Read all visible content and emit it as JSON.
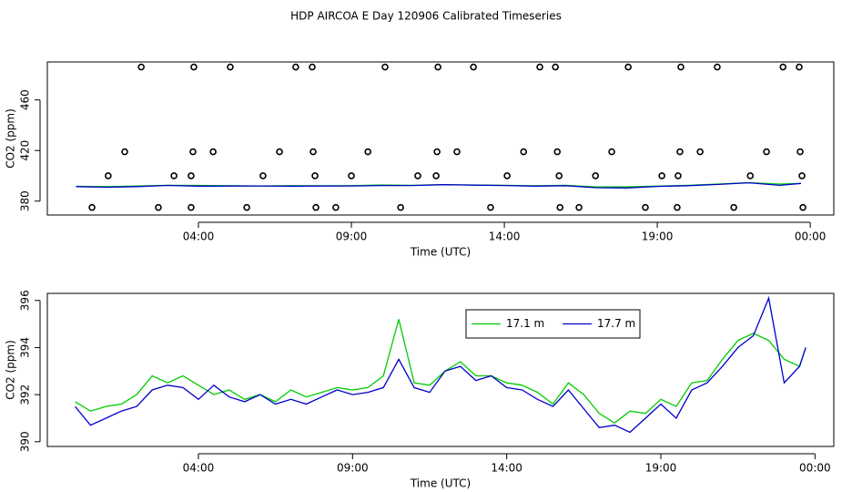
{
  "chart_data": [
    {
      "type": "line",
      "title": "HDP AIRCOA E  Day 120906  Calibrated Timeseries",
      "xlabel": "Time (UTC)",
      "ylabel": "CO2 (ppm)",
      "xlim": [
        -0.94,
        24.77
      ],
      "xticks": [
        {
          "value": 4,
          "label": "04:00"
        },
        {
          "value": 9,
          "label": "09:00"
        },
        {
          "value": 14,
          "label": "14:00"
        },
        {
          "value": 19,
          "label": "19:00"
        },
        {
          "value": 24,
          "label": "00:00"
        }
      ],
      "ylim": [
        369,
        490
      ],
      "yticks": [
        380,
        420,
        460
      ],
      "series": [
        {
          "type": "line",
          "color": "#00cc00",
          "x": [
            0,
            1,
            2,
            3,
            4,
            5,
            6,
            7,
            8,
            9,
            10,
            11,
            12,
            13,
            14,
            15,
            16,
            17,
            18,
            19,
            20,
            21,
            22,
            23,
            23.7
          ],
          "values": [
            391.7,
            391.5,
            392.0,
            392.5,
            392.4,
            392.2,
            392.0,
            392.2,
            392.1,
            392.2,
            392.8,
            392.5,
            393.0,
            392.8,
            392.5,
            392.1,
            392.5,
            391.2,
            391.3,
            391.8,
            392.5,
            393.5,
            394.6,
            393.5,
            394.0
          ]
        },
        {
          "type": "line",
          "color": "#0000cc",
          "x": [
            0,
            1,
            2,
            3,
            4,
            5,
            6,
            7,
            8,
            9,
            10,
            11,
            12,
            13,
            14,
            15,
            16,
            17,
            18,
            19,
            20,
            21,
            22,
            23,
            23.7
          ],
          "values": [
            391.5,
            391.0,
            391.5,
            392.4,
            391.8,
            391.9,
            392.0,
            391.8,
            391.9,
            392.0,
            392.3,
            392.3,
            393.0,
            392.6,
            392.3,
            391.8,
            392.2,
            390.6,
            390.4,
            391.6,
            392.2,
            393.2,
            394.5,
            392.5,
            394.0
          ]
        },
        {
          "type": "scatter",
          "color": "#000000",
          "x": [
            2.13,
            3.85,
            5.04,
            7.18,
            7.72,
            10.1,
            11.83,
            12.99,
            15.16,
            15.67,
            18.05,
            19.77,
            20.96,
            23.11,
            23.64,
            1.59,
            3.82,
            4.48,
            6.65,
            7.75,
            9.54,
            11.8,
            12.45,
            14.63,
            15.73,
            17.51,
            19.74,
            20.4,
            22.57,
            23.67,
            1.05,
            3.2,
            3.76,
            6.11,
            7.81,
            9.0,
            11.17,
            11.77,
            14.09,
            15.79,
            16.98,
            19.15,
            19.68,
            22.04,
            23.73,
            0.52,
            2.69,
            3.76,
            5.58,
            7.84,
            8.49,
            10.61,
            13.55,
            15.82,
            16.44,
            18.61,
            19.65,
            21.5,
            23.76
          ],
          "values": [
            486,
            486,
            486,
            486,
            486,
            486,
            486,
            486,
            486,
            486,
            486,
            486,
            486,
            486,
            486,
            419,
            419,
            419,
            419,
            419,
            419,
            419,
            419,
            419,
            419,
            419,
            419,
            419,
            419,
            419,
            400,
            400,
            400,
            400,
            400,
            400,
            400,
            400,
            400,
            400,
            400,
            400,
            400,
            400,
            400,
            375,
            375,
            375,
            375,
            375,
            375,
            375,
            375,
            375,
            375,
            375,
            375,
            375,
            375
          ]
        }
      ]
    },
    {
      "type": "line",
      "xlabel": "Time (UTC)",
      "ylabel": "CO2 (ppm)",
      "xlim": [
        -0.9,
        24.61
      ],
      "xticks": [
        {
          "value": 4,
          "label": "04:00"
        },
        {
          "value": 9,
          "label": "09:00"
        },
        {
          "value": 14,
          "label": "14:00"
        },
        {
          "value": 19,
          "label": "19:00"
        },
        {
          "value": 24,
          "label": "00:00"
        }
      ],
      "ylim": [
        389.8,
        396.3
      ],
      "yticks": [
        390,
        392,
        394,
        396
      ],
      "legend": "top",
      "series": [
        {
          "type": "line",
          "name": "17.1 m",
          "color": "#00cc00",
          "x": [
            0,
            0.5,
            1,
            1.5,
            2,
            2.5,
            3,
            3.5,
            4,
            4.5,
            5,
            5.5,
            6,
            6.5,
            7,
            7.5,
            8,
            8.5,
            9,
            9.5,
            10,
            10.5,
            11,
            11.5,
            12,
            12.5,
            13,
            13.5,
            14,
            14.5,
            15,
            15.5,
            16,
            16.5,
            17,
            17.5,
            18,
            18.5,
            19,
            19.5,
            20,
            20.5,
            21,
            21.5,
            22,
            22.5,
            23,
            23.5,
            23.7
          ],
          "values": [
            391.7,
            391.3,
            391.5,
            391.6,
            392.0,
            392.8,
            392.5,
            392.8,
            392.4,
            392.0,
            392.2,
            391.8,
            392.0,
            391.7,
            392.2,
            391.9,
            392.1,
            392.3,
            392.2,
            392.3,
            392.8,
            395.2,
            392.5,
            392.4,
            393.0,
            393.4,
            392.8,
            392.8,
            392.5,
            392.4,
            392.1,
            391.6,
            392.5,
            392.0,
            391.2,
            390.8,
            391.3,
            391.2,
            391.8,
            391.5,
            392.5,
            392.6,
            393.5,
            394.3,
            394.6,
            394.3,
            393.5,
            393.2,
            394.0
          ]
        },
        {
          "type": "line",
          "name": "17.7 m",
          "color": "#0000cc",
          "x": [
            0,
            0.5,
            1,
            1.5,
            2,
            2.5,
            3,
            3.5,
            4,
            4.5,
            5,
            5.5,
            6,
            6.5,
            7,
            7.5,
            8,
            8.5,
            9,
            9.5,
            10,
            10.5,
            11,
            11.5,
            12,
            12.5,
            13,
            13.5,
            14,
            14.5,
            15,
            15.5,
            16,
            16.5,
            17,
            17.5,
            18,
            18.5,
            19,
            19.5,
            20,
            20.5,
            21,
            21.5,
            22,
            22.5,
            23,
            23.5,
            23.7
          ],
          "values": [
            391.5,
            390.7,
            391.0,
            391.3,
            391.5,
            392.2,
            392.4,
            392.3,
            391.8,
            392.4,
            391.9,
            391.7,
            392.0,
            391.6,
            391.8,
            391.6,
            391.9,
            392.2,
            392.0,
            392.1,
            392.3,
            393.5,
            392.3,
            392.1,
            393.0,
            393.2,
            392.6,
            392.8,
            392.3,
            392.2,
            391.8,
            391.5,
            392.2,
            391.4,
            390.6,
            390.7,
            390.4,
            391.0,
            391.6,
            391.0,
            392.2,
            392.5,
            393.2,
            394.0,
            394.5,
            396.1,
            392.5,
            393.2,
            394.0
          ]
        }
      ]
    }
  ]
}
